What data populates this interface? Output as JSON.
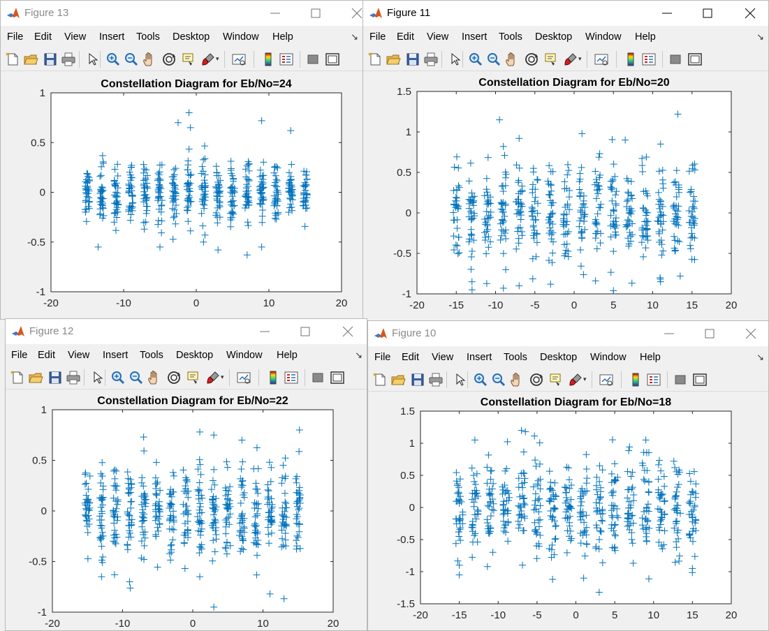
{
  "menu": [
    "File",
    "Edit",
    "View",
    "Insert",
    "Tools",
    "Desktop",
    "Window",
    "Help"
  ],
  "icons": [
    "new-figure-icon",
    "open-file-icon",
    "save-icon",
    "print-icon",
    "pointer-icon",
    "zoom-in-icon",
    "zoom-out-icon",
    "pan-icon",
    "rotate-3d-icon",
    "data-cursor-icon",
    "brush-icon",
    "link-plot-icon",
    "colorbar-icon",
    "legend-icon",
    "hide-plot-tools-icon",
    "show-plot-tools-icon"
  ],
  "colors": {
    "marker": "#0072bd",
    "axes_bg": "#ffffff",
    "figure_bg": "#f0f0f0"
  },
  "windows": [
    {
      "id": "fig13",
      "title": "Figure 13",
      "active": false,
      "chart_data": {
        "type": "scatter",
        "marker": "+",
        "title": "Constellation Diagram for Eb/No=24",
        "xlim": [
          -20,
          20
        ],
        "ylim": [
          -1,
          1
        ],
        "xticks": [
          "-20",
          "-10",
          "0",
          "10",
          "20"
        ],
        "yticks": [
          "-1",
          "-0.5",
          "0",
          "0.5",
          "1"
        ],
        "ytick_values": [
          -1,
          -0.5,
          0,
          0.5,
          1
        ],
        "columns": [
          -15,
          -13,
          -11,
          -9,
          -7,
          -5,
          -3,
          -1,
          1,
          3,
          5,
          7,
          9,
          11,
          13,
          15
        ],
        "spread": 0.15,
        "xjitter": 0.3,
        "outliers": [
          [
            -2.5,
            0.7
          ],
          [
            -1,
            0.8
          ],
          [
            -0.8,
            0.65
          ],
          [
            9,
            0.72
          ],
          [
            13,
            0.62
          ],
          [
            -13.5,
            -0.55
          ],
          [
            -5,
            -0.55
          ],
          [
            7,
            -0.63
          ],
          [
            3,
            -0.58
          ],
          [
            9,
            -0.55
          ],
          [
            1,
            -0.5
          ]
        ]
      }
    },
    {
      "id": "fig11",
      "title": "Figure 11",
      "active": true,
      "chart_data": {
        "type": "scatter",
        "marker": "+",
        "title": "Constellation Diagram for Eb/No=20",
        "xlim": [
          -20,
          20
        ],
        "ylim": [
          -1,
          1.5
        ],
        "xticks": [
          "-20",
          "-15",
          "-10",
          "-5",
          "0",
          "5",
          "10",
          "15",
          "20"
        ],
        "yticks": [
          "-1",
          "-0.5",
          "0",
          "0.5",
          "1",
          "1.5"
        ],
        "ytick_values": [
          -1,
          -0.5,
          0,
          0.5,
          1,
          1.5
        ],
        "columns": [
          -15,
          -13,
          -11,
          -9,
          -7,
          -5,
          -3,
          -1,
          1,
          3,
          5,
          7,
          9,
          11,
          13,
          15
        ],
        "spread": 0.3,
        "xjitter": 0.4,
        "outliers": [
          [
            -9.5,
            1.15
          ],
          [
            13.2,
            1.22
          ],
          [
            1,
            0.98
          ],
          [
            -7,
            0.92
          ],
          [
            -9,
            0.82
          ],
          [
            6.5,
            0.9
          ],
          [
            11,
            0.85
          ],
          [
            -13,
            -0.85
          ],
          [
            -9,
            -0.93
          ],
          [
            -7,
            -0.9
          ],
          [
            5,
            -0.96
          ],
          [
            -3,
            -0.88
          ],
          [
            13.5,
            -0.78
          ],
          [
            11,
            -0.85
          ]
        ]
      }
    },
    {
      "id": "fig12",
      "title": "Figure 12",
      "active": false,
      "chart_data": {
        "type": "scatter",
        "marker": "+",
        "title": "Constellation Diagram for Eb/No=22",
        "xlim": [
          -20,
          20
        ],
        "ylim": [
          -1,
          1
        ],
        "xticks": [
          "-20",
          "-10",
          "0",
          "10",
          "20"
        ],
        "yticks": [
          "-1",
          "-0.5",
          "0",
          "0.5",
          "1"
        ],
        "ytick_values": [
          -1,
          -0.5,
          0,
          0.5,
          1
        ],
        "columns": [
          -15,
          -13,
          -11,
          -9,
          -7,
          -5,
          -3,
          -1,
          1,
          3,
          5,
          7,
          9,
          11,
          13,
          15
        ],
        "spread": 0.24,
        "xjitter": 0.35,
        "outliers": [
          [
            -7,
            0.73
          ],
          [
            1,
            0.78
          ],
          [
            3,
            0.75
          ],
          [
            7,
            0.7
          ],
          [
            15.2,
            0.8
          ],
          [
            -9,
            -0.7
          ],
          [
            3,
            -0.95
          ],
          [
            11,
            -0.82
          ],
          [
            -13,
            -0.65
          ],
          [
            1,
            -0.65
          ]
        ]
      }
    },
    {
      "id": "fig10",
      "title": "Figure 10",
      "active": false,
      "chart_data": {
        "type": "scatter",
        "marker": "+",
        "title": "Constellation Diagram for Eb/No=18",
        "xlim": [
          -20,
          20
        ],
        "ylim": [
          -1.5,
          1.5
        ],
        "xticks": [
          "-20",
          "-15",
          "-10",
          "-5",
          "0",
          "5",
          "10",
          "15",
          "20"
        ],
        "yticks": [
          "-1.5",
          "-1",
          "-0.5",
          "0",
          "0.5",
          "1",
          "1.5"
        ],
        "ytick_values": [
          -1.5,
          -1,
          -0.5,
          0,
          0.5,
          1,
          1.5
        ],
        "columns": [
          -15,
          -13,
          -11,
          -9,
          -7,
          -5,
          -3,
          -1,
          1,
          3,
          5,
          7,
          9,
          11,
          13,
          15
        ],
        "spread": 0.38,
        "xjitter": 0.45,
        "outliers": [
          [
            -7,
            1.2
          ],
          [
            -6.5,
            1.18
          ],
          [
            -15,
            -1.05
          ],
          [
            3,
            -1.32
          ],
          [
            -3,
            -1.12
          ],
          [
            1,
            -1.1
          ],
          [
            9,
            1.05
          ],
          [
            -13,
            1.05
          ],
          [
            -15,
            -0.9
          ],
          [
            15,
            -0.95
          ]
        ]
      }
    }
  ]
}
